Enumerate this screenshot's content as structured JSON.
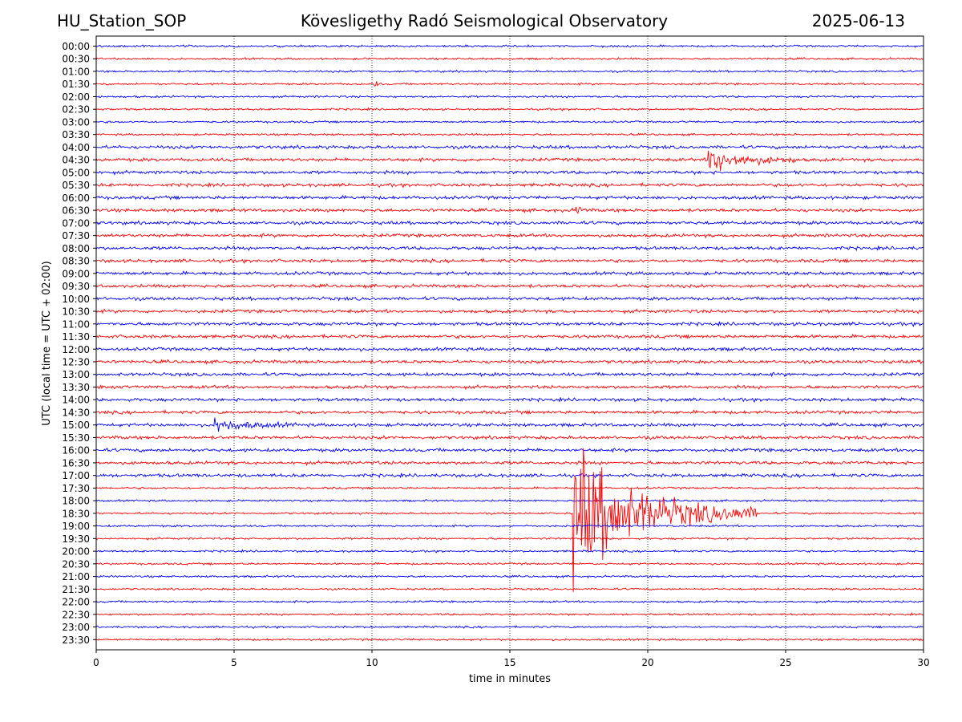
{
  "header": {
    "station": "HU_Station_SOP",
    "observatory": "Kövesligethy Radó Seismological Observatory",
    "date": "2025-06-13"
  },
  "chart_data": {
    "type": "line",
    "title": "Kövesligethy Radó Seismological Observatory",
    "xlabel": "time in minutes",
    "ylabel": "UTC (local time = UTC + 02:00)",
    "xlim": [
      0,
      30
    ],
    "xticks": [
      0,
      5,
      10,
      15,
      20,
      25,
      30
    ],
    "vertical_gridlines": [
      5,
      10,
      15,
      20,
      25
    ],
    "grid_style": "dotted vertical",
    "row_labels": [
      "00:00",
      "00:30",
      "01:00",
      "01:30",
      "02:00",
      "02:30",
      "03:00",
      "03:30",
      "04:00",
      "04:30",
      "05:00",
      "05:30",
      "06:00",
      "06:30",
      "07:00",
      "07:30",
      "08:00",
      "08:30",
      "09:00",
      "09:30",
      "10:00",
      "10:30",
      "11:00",
      "11:30",
      "12:00",
      "12:30",
      "13:00",
      "13:30",
      "14:00",
      "14:30",
      "15:00",
      "15:30",
      "16:00",
      "16:30",
      "17:00",
      "17:30",
      "18:00",
      "18:30",
      "19:00",
      "19:30",
      "20:00",
      "20:30",
      "21:00",
      "21:30",
      "22:00",
      "22:30",
      "23:00",
      "23:30"
    ],
    "trace_colors": [
      "#0000ff",
      "#ff0000"
    ],
    "events": [
      {
        "row": "01:30",
        "start_min": 10.1,
        "end_min": 10.3,
        "amplitude": 1.2
      },
      {
        "row": "04:30",
        "start_min": 22.2,
        "end_min": 25.5,
        "amplitude": 3.0
      },
      {
        "row": "06:30",
        "start_min": 17.4,
        "end_min": 17.8,
        "amplitude": 1.3
      },
      {
        "row": "15:00",
        "start_min": 4.3,
        "end_min": 7.5,
        "amplitude": 1.4
      },
      {
        "row": "18:30",
        "start_min": 17.3,
        "end_min": 24.0,
        "amplitude": 14.0
      }
    ]
  }
}
